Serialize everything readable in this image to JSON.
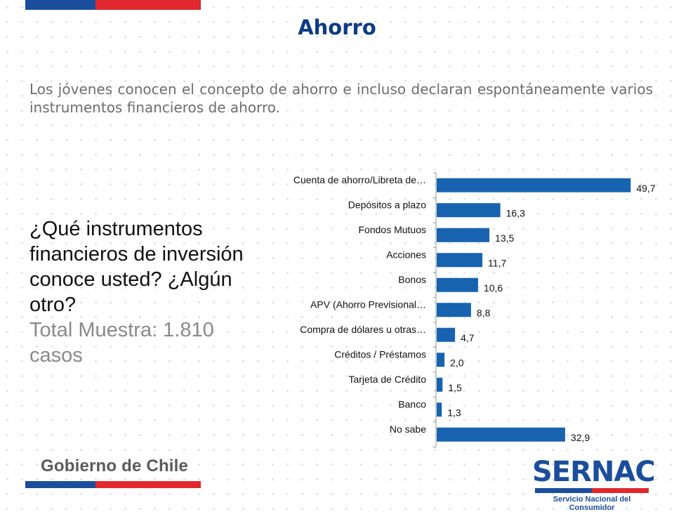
{
  "header": {
    "title": "Ahorro",
    "subtitle": "Los jóvenes conocen el concepto de ahorro e incluso declaran espontáneamente varios instrumentos financieros de ahorro."
  },
  "question": {
    "text": "¿Qué instrumentos financieros de inversión conoce usted? ¿Algún otro?",
    "sample": "Total Muestra: 1.810 casos"
  },
  "footer": {
    "government": "Gobierno de Chile",
    "brand": "SERNAC",
    "brand_subtitle": "Servicio Nacional del Consumidor"
  },
  "colors": {
    "bar": "#1763b0",
    "title": "#0d3c86",
    "flag_blue": "#1a4e9c",
    "flag_red": "#e0282e"
  },
  "chart_data": {
    "type": "bar",
    "orientation": "horizontal",
    "categories": [
      "Cuenta de ahorro/Libreta de…",
      "Depósitos a plazo",
      "Fondos Mutuos",
      "Acciones",
      "Bonos",
      "APV (Ahorro Previsional…",
      "Compra de dólares u otras…",
      "Créditos / Préstamos",
      "Tarjeta de Crédito",
      "Banco",
      "No sabe"
    ],
    "values": [
      49.7,
      16.3,
      13.5,
      11.7,
      10.6,
      8.8,
      4.7,
      2.0,
      1.5,
      1.3,
      32.9
    ],
    "value_labels": [
      "49,7",
      "16,3",
      "13,5",
      "11,7",
      "10,6",
      "8,8",
      "4,7",
      "2,0",
      "1,5",
      "1,3",
      "32,9"
    ],
    "xlim": [
      0,
      50
    ],
    "grid": false
  }
}
